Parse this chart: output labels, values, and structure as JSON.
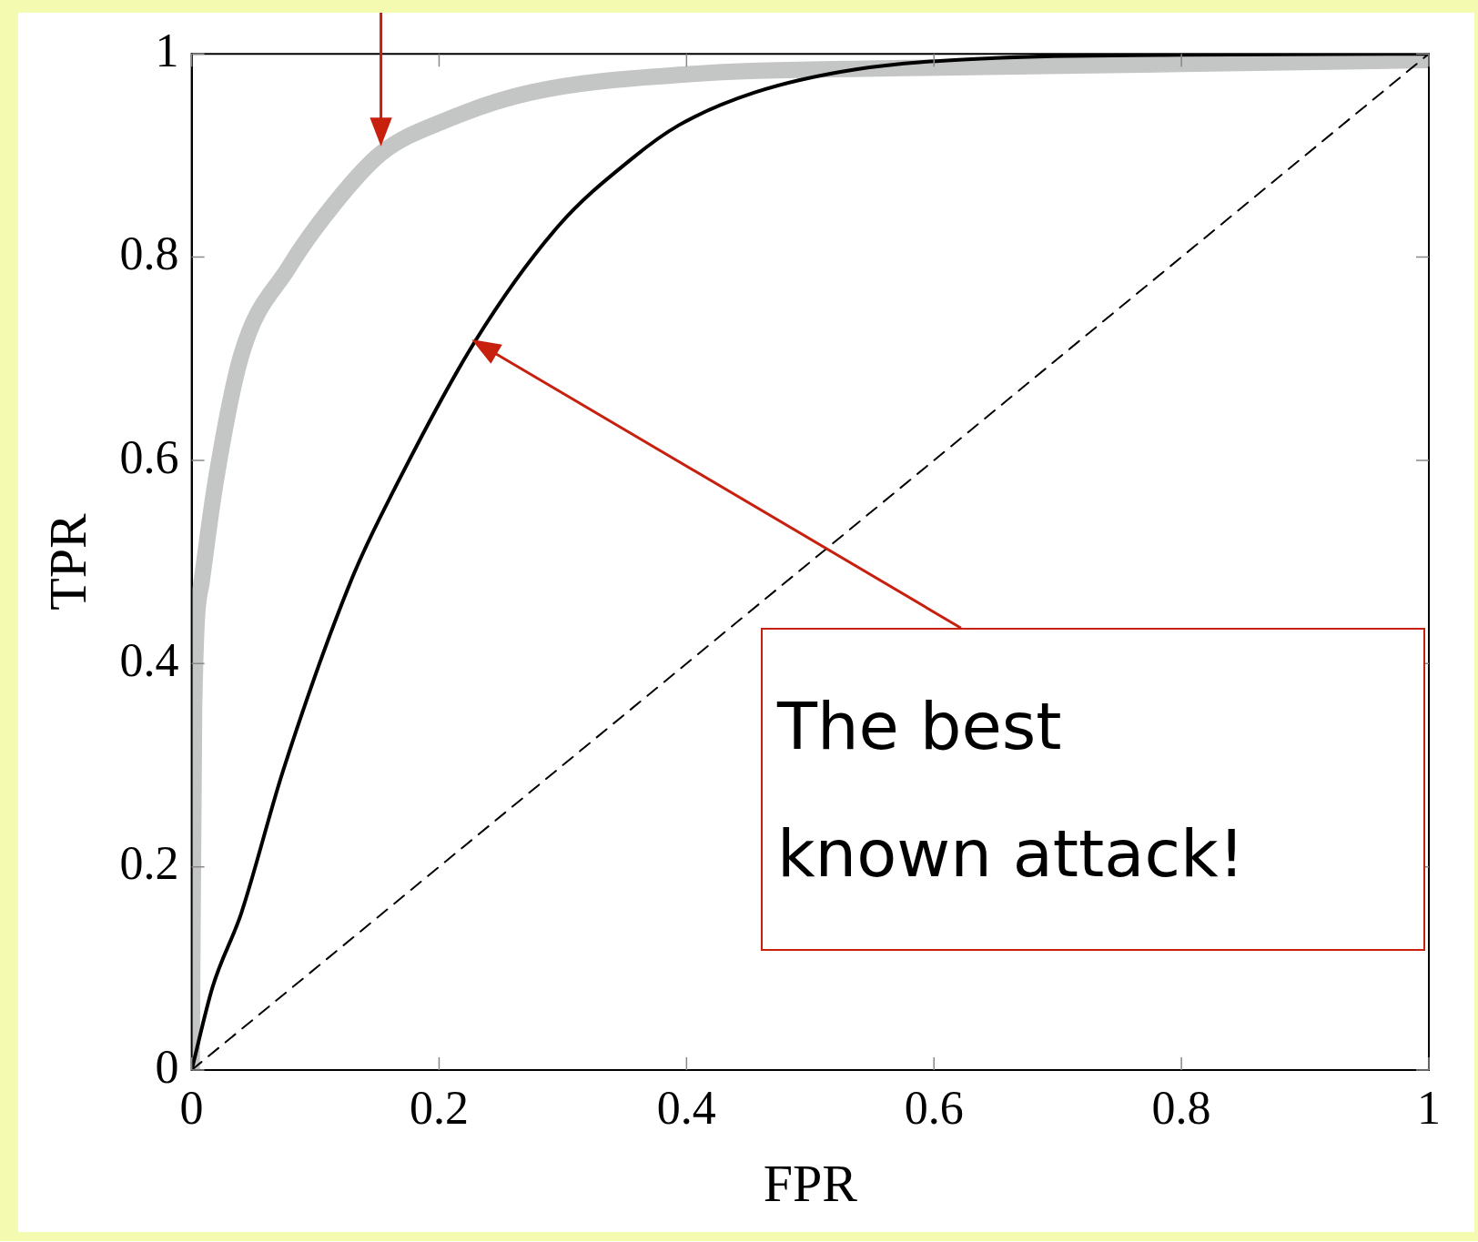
{
  "chart_data": {
    "type": "line",
    "xlabel": "FPR",
    "ylabel": "TPR",
    "xlim": [
      0,
      1
    ],
    "ylim": [
      0,
      1
    ],
    "xticks": [
      0,
      0.2,
      0.4,
      0.6,
      0.8,
      1
    ],
    "yticks": [
      0,
      0.2,
      0.4,
      0.6,
      0.8,
      1
    ],
    "grid": false,
    "legend": false,
    "marker": "none",
    "series": [
      {
        "color": "#c4c6c5",
        "line_style": "solid",
        "x": [
          0,
          0.002,
          0.008,
          0.019,
          0.04,
          0.078,
          0.115,
          0.153,
          0.206,
          0.274,
          0.402,
          0.575,
          0.8,
          1
        ],
        "values": [
          0,
          0.358,
          0.48,
          0.576,
          0.703,
          0.789,
          0.852,
          0.902,
          0.935,
          0.962,
          0.98,
          0.986,
          0.99,
          0.994
        ]
      },
      {
        "color": "#000000",
        "line_style": "solid",
        "x": [
          0,
          0.017,
          0.04,
          0.074,
          0.13,
          0.164,
          0.229,
          0.296,
          0.357,
          0.394,
          0.455,
          0.538,
          0.65,
          0.8,
          1
        ],
        "values": [
          0,
          0.082,
          0.154,
          0.295,
          0.485,
          0.572,
          0.717,
          0.83,
          0.898,
          0.93,
          0.962,
          0.985,
          0.996,
          0.999,
          1
        ]
      },
      {
        "color": "#000000",
        "line_style": "dashed",
        "x": [
          0,
          1
        ],
        "values": [
          0,
          1
        ]
      }
    ],
    "annotations": [
      "The best known attack!"
    ]
  }
}
